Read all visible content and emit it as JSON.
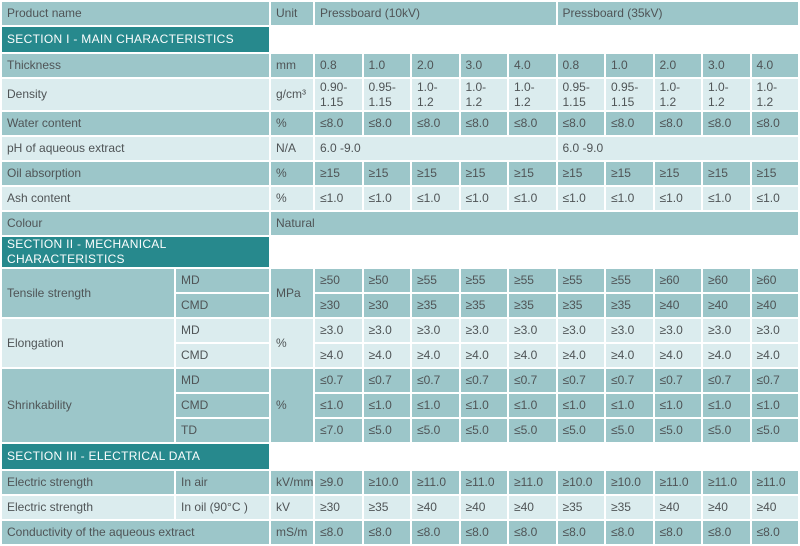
{
  "colors": {
    "section_header_bg": "#27898d",
    "row_teal": "#9cc6c9",
    "row_pale": "#dbecee",
    "text": "#4f5456",
    "section_header_text": "#fbfdfd",
    "cell_border": "#ffffff"
  },
  "table": {
    "header": {
      "product": "Product name",
      "unit": "Unit",
      "groups": [
        {
          "label": "Pressboard (10kV)",
          "span": 5
        },
        {
          "label": "Pressboard (35kV)",
          "span": 5
        }
      ]
    },
    "rows": [
      {
        "type": "section",
        "label": "SECTION I - MAIN CHARACTERISTICS"
      },
      {
        "type": "data",
        "shade": "teal",
        "cells": [
          {
            "t": "Thickness",
            "cs": 2,
            "role": "label"
          },
          {
            "t": "mm",
            "role": "unit"
          },
          {
            "t": "0.8",
            "role": "value"
          },
          {
            "t": "1.0",
            "role": "value"
          },
          {
            "t": "2.0",
            "role": "value"
          },
          {
            "t": "3.0",
            "role": "value"
          },
          {
            "t": "4.0",
            "role": "value"
          },
          {
            "t": "0.8",
            "role": "value"
          },
          {
            "t": "1.0",
            "role": "value"
          },
          {
            "t": "2.0",
            "role": "value"
          },
          {
            "t": "3.0",
            "role": "value"
          },
          {
            "t": "4.0",
            "role": "value"
          }
        ]
      },
      {
        "type": "data",
        "shade": "pale",
        "tall": true,
        "cells": [
          {
            "t": "Density",
            "cs": 2,
            "role": "label"
          },
          {
            "t": "g/cm³",
            "role": "unit"
          },
          {
            "t": "0.90-1.15",
            "role": "value"
          },
          {
            "t": "0.95-1.15",
            "role": "value"
          },
          {
            "t": "1.0-1.2",
            "role": "value"
          },
          {
            "t": "1.0-1.2",
            "role": "value"
          },
          {
            "t": "1.0-1.2",
            "role": "value"
          },
          {
            "t": "0.95-1.15",
            "role": "value"
          },
          {
            "t": "0.95-1.15",
            "role": "value"
          },
          {
            "t": "1.0-1.2",
            "role": "value"
          },
          {
            "t": "1.0-1.2",
            "role": "value"
          },
          {
            "t": "1.0-1.2",
            "role": "value"
          }
        ]
      },
      {
        "type": "data",
        "shade": "teal",
        "cells": [
          {
            "t": "Water content",
            "cs": 2,
            "role": "label"
          },
          {
            "t": "%",
            "role": "unit"
          },
          {
            "t": "≤8.0",
            "role": "value"
          },
          {
            "t": "≤8.0",
            "role": "value"
          },
          {
            "t": "≤8.0",
            "role": "value"
          },
          {
            "t": "≤8.0",
            "role": "value"
          },
          {
            "t": "≤8.0",
            "role": "value"
          },
          {
            "t": "≤8.0",
            "role": "value"
          },
          {
            "t": "≤8.0",
            "role": "value"
          },
          {
            "t": "≤8.0",
            "role": "value"
          },
          {
            "t": "≤8.0",
            "role": "value"
          },
          {
            "t": "≤8.0",
            "role": "value"
          }
        ]
      },
      {
        "type": "data",
        "shade": "pale",
        "cells": [
          {
            "t": "pH of aqueous extract",
            "cs": 2,
            "role": "label"
          },
          {
            "t": "N/A",
            "role": "unit"
          },
          {
            "t": "6.0 -9.0",
            "cs": 5,
            "role": "value"
          },
          {
            "t": "6.0 -9.0",
            "cs": 5,
            "role": "value"
          }
        ]
      },
      {
        "type": "data",
        "shade": "teal",
        "cells": [
          {
            "t": "Oil absorption",
            "cs": 2,
            "role": "label"
          },
          {
            "t": "%",
            "role": "unit"
          },
          {
            "t": "≥15",
            "role": "value"
          },
          {
            "t": "≥15",
            "role": "value"
          },
          {
            "t": "≥15",
            "role": "value"
          },
          {
            "t": "≥15",
            "role": "value"
          },
          {
            "t": "≥15",
            "role": "value"
          },
          {
            "t": "≥15",
            "role": "value"
          },
          {
            "t": "≥15",
            "role": "value"
          },
          {
            "t": "≥15",
            "role": "value"
          },
          {
            "t": "≥15",
            "role": "value"
          },
          {
            "t": "≥15",
            "role": "value"
          }
        ]
      },
      {
        "type": "data",
        "shade": "pale",
        "cells": [
          {
            "t": "Ash content",
            "cs": 2,
            "role": "label"
          },
          {
            "t": "%",
            "role": "unit"
          },
          {
            "t": "≤1.0",
            "role": "value"
          },
          {
            "t": "≤1.0",
            "role": "value"
          },
          {
            "t": "≤1.0",
            "role": "value"
          },
          {
            "t": "≤1.0",
            "role": "value"
          },
          {
            "t": "≤1.0",
            "role": "value"
          },
          {
            "t": "≤1.0",
            "role": "value"
          },
          {
            "t": "≤1.0",
            "role": "value"
          },
          {
            "t": "≤1.0",
            "role": "value"
          },
          {
            "t": "≤1.0",
            "role": "value"
          },
          {
            "t": "≤1.0",
            "role": "value"
          }
        ]
      },
      {
        "type": "data",
        "shade": "teal",
        "cells": [
          {
            "t": "Colour",
            "cs": 2,
            "role": "label"
          },
          {
            "t": "Natural",
            "cs": 11,
            "role": "value"
          }
        ]
      },
      {
        "type": "section",
        "label": "SECTION II - MECHANICAL CHARACTERISTICS"
      },
      {
        "type": "data",
        "shade": "teal",
        "cells": [
          {
            "t": "Tensile strength",
            "rs": 2,
            "role": "label"
          },
          {
            "t": "MD",
            "role": "sublabel"
          },
          {
            "t": "MPa",
            "rs": 2,
            "role": "unit"
          },
          {
            "t": "≥50",
            "role": "value"
          },
          {
            "t": "≥50",
            "role": "value"
          },
          {
            "t": "≥55",
            "role": "value"
          },
          {
            "t": "≥55",
            "role": "value"
          },
          {
            "t": "≥55",
            "role": "value"
          },
          {
            "t": "≥55",
            "role": "value"
          },
          {
            "t": "≥55",
            "role": "value"
          },
          {
            "t": "≥60",
            "role": "value"
          },
          {
            "t": "≥60",
            "role": "value"
          },
          {
            "t": "≥60",
            "role": "value"
          }
        ]
      },
      {
        "type": "data",
        "shade": "teal",
        "cells": [
          {
            "t": "CMD",
            "role": "sublabel"
          },
          {
            "t": "≥30",
            "role": "value"
          },
          {
            "t": "≥30",
            "role": "value"
          },
          {
            "t": "≥35",
            "role": "value"
          },
          {
            "t": "≥35",
            "role": "value"
          },
          {
            "t": "≥35",
            "role": "value"
          },
          {
            "t": "≥35",
            "role": "value"
          },
          {
            "t": "≥35",
            "role": "value"
          },
          {
            "t": "≥40",
            "role": "value"
          },
          {
            "t": "≥40",
            "role": "value"
          },
          {
            "t": "≥40",
            "role": "value"
          }
        ]
      },
      {
        "type": "data",
        "shade": "pale",
        "cells": [
          {
            "t": "Elongation",
            "rs": 2,
            "role": "label"
          },
          {
            "t": "MD",
            "role": "sublabel"
          },
          {
            "t": "%",
            "rs": 2,
            "role": "unit"
          },
          {
            "t": "≥3.0",
            "role": "value"
          },
          {
            "t": "≥3.0",
            "role": "value"
          },
          {
            "t": "≥3.0",
            "role": "value"
          },
          {
            "t": "≥3.0",
            "role": "value"
          },
          {
            "t": "≥3.0",
            "role": "value"
          },
          {
            "t": "≥3.0",
            "role": "value"
          },
          {
            "t": "≥3.0",
            "role": "value"
          },
          {
            "t": "≥3.0",
            "role": "value"
          },
          {
            "t": "≥3.0",
            "role": "value"
          },
          {
            "t": "≥3.0",
            "role": "value"
          }
        ]
      },
      {
        "type": "data",
        "shade": "pale",
        "cells": [
          {
            "t": "CMD",
            "role": "sublabel"
          },
          {
            "t": "≥4.0",
            "role": "value"
          },
          {
            "t": "≥4.0",
            "role": "value"
          },
          {
            "t": "≥4.0",
            "role": "value"
          },
          {
            "t": "≥4.0",
            "role": "value"
          },
          {
            "t": "≥4.0",
            "role": "value"
          },
          {
            "t": "≥4.0",
            "role": "value"
          },
          {
            "t": "≥4.0",
            "role": "value"
          },
          {
            "t": "≥4.0",
            "role": "value"
          },
          {
            "t": "≥4.0",
            "role": "value"
          },
          {
            "t": "≥4.0",
            "role": "value"
          }
        ]
      },
      {
        "type": "data",
        "shade": "teal",
        "cells": [
          {
            "t": "Shrinkability",
            "rs": 3,
            "role": "label"
          },
          {
            "t": "MD",
            "role": "sublabel"
          },
          {
            "t": "%",
            "rs": 3,
            "role": "unit"
          },
          {
            "t": "≤0.7",
            "role": "value"
          },
          {
            "t": "≤0.7",
            "role": "value"
          },
          {
            "t": "≤0.7",
            "role": "value"
          },
          {
            "t": "≤0.7",
            "role": "value"
          },
          {
            "t": "≤0.7",
            "role": "value"
          },
          {
            "t": "≤0.7",
            "role": "value"
          },
          {
            "t": "≤0.7",
            "role": "value"
          },
          {
            "t": "≤0.7",
            "role": "value"
          },
          {
            "t": "≤0.7",
            "role": "value"
          },
          {
            "t": "≤0.7",
            "role": "value"
          }
        ]
      },
      {
        "type": "data",
        "shade": "teal",
        "cells": [
          {
            "t": "CMD",
            "role": "sublabel"
          },
          {
            "t": "≤1.0",
            "role": "value"
          },
          {
            "t": "≤1.0",
            "role": "value"
          },
          {
            "t": "≤1.0",
            "role": "value"
          },
          {
            "t": "≤1.0",
            "role": "value"
          },
          {
            "t": "≤1.0",
            "role": "value"
          },
          {
            "t": "≤1.0",
            "role": "value"
          },
          {
            "t": "≤1.0",
            "role": "value"
          },
          {
            "t": "≤1.0",
            "role": "value"
          },
          {
            "t": "≤1.0",
            "role": "value"
          },
          {
            "t": "≤1.0",
            "role": "value"
          }
        ]
      },
      {
        "type": "data",
        "shade": "teal",
        "cells": [
          {
            "t": "TD",
            "role": "sublabel"
          },
          {
            "t": "≤7.0",
            "role": "value"
          },
          {
            "t": "≤5.0",
            "role": "value"
          },
          {
            "t": "≤5.0",
            "role": "value"
          },
          {
            "t": "≤5.0",
            "role": "value"
          },
          {
            "t": "≤5.0",
            "role": "value"
          },
          {
            "t": "≤5.0",
            "role": "value"
          },
          {
            "t": "≤5.0",
            "role": "value"
          },
          {
            "t": "≤5.0",
            "role": "value"
          },
          {
            "t": "≤5.0",
            "role": "value"
          },
          {
            "t": "≤5.0",
            "role": "value"
          }
        ]
      },
      {
        "type": "section",
        "label": "SECTION III - ELECTRICAL DATA"
      },
      {
        "type": "data",
        "shade": "teal",
        "cells": [
          {
            "t": "Electric strength",
            "role": "label"
          },
          {
            "t": "In air",
            "role": "sublabel"
          },
          {
            "t": "kV/mm",
            "role": "unit"
          },
          {
            "t": "≥9.0",
            "role": "value"
          },
          {
            "t": "≥10.0",
            "role": "value"
          },
          {
            "t": "≥11.0",
            "role": "value"
          },
          {
            "t": "≥11.0",
            "role": "value"
          },
          {
            "t": "≥11.0",
            "role": "value"
          },
          {
            "t": "≥10.0",
            "role": "value"
          },
          {
            "t": "≥10.0",
            "role": "value"
          },
          {
            "t": "≥11.0",
            "role": "value"
          },
          {
            "t": "≥11.0",
            "role": "value"
          },
          {
            "t": "≥11.0",
            "role": "value"
          }
        ]
      },
      {
        "type": "data",
        "shade": "pale",
        "cells": [
          {
            "t": "Electric strength",
            "role": "label"
          },
          {
            "t": "In oil (90°C )",
            "role": "sublabel"
          },
          {
            "t": "kV",
            "role": "unit"
          },
          {
            "t": "≥30",
            "role": "value"
          },
          {
            "t": "≥35",
            "role": "value"
          },
          {
            "t": "≥40",
            "role": "value"
          },
          {
            "t": "≥40",
            "role": "value"
          },
          {
            "t": "≥40",
            "role": "value"
          },
          {
            "t": "≥35",
            "role": "value"
          },
          {
            "t": "≥35",
            "role": "value"
          },
          {
            "t": "≥40",
            "role": "value"
          },
          {
            "t": "≥40",
            "role": "value"
          },
          {
            "t": "≥40",
            "role": "value"
          }
        ]
      },
      {
        "type": "data",
        "shade": "teal",
        "cells": [
          {
            "t": "Conductivity of the aqueous extract",
            "cs": 2,
            "role": "label"
          },
          {
            "t": "mS/m",
            "role": "unit"
          },
          {
            "t": "≤8.0",
            "role": "value"
          },
          {
            "t": "≤8.0",
            "role": "value"
          },
          {
            "t": "≤8.0",
            "role": "value"
          },
          {
            "t": "≤8.0",
            "role": "value"
          },
          {
            "t": "≤8.0",
            "role": "value"
          },
          {
            "t": "≤8.0",
            "role": "value"
          },
          {
            "t": "≤8.0",
            "role": "value"
          },
          {
            "t": "≤8.0",
            "role": "value"
          },
          {
            "t": "≤8.0",
            "role": "value"
          },
          {
            "t": "≤8.0",
            "role": "value"
          }
        ]
      }
    ]
  }
}
